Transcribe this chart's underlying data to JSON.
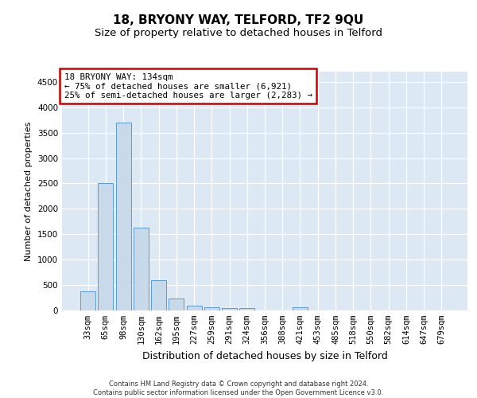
{
  "title": "18, BRYONY WAY, TELFORD, TF2 9QU",
  "subtitle": "Size of property relative to detached houses in Telford",
  "xlabel": "Distribution of detached houses by size in Telford",
  "ylabel": "Number of detached properties",
  "footer_line1": "Contains HM Land Registry data © Crown copyright and database right 2024.",
  "footer_line2": "Contains public sector information licensed under the Open Government Licence v3.0.",
  "categories": [
    "33sqm",
    "65sqm",
    "98sqm",
    "130sqm",
    "162sqm",
    "195sqm",
    "227sqm",
    "259sqm",
    "291sqm",
    "324sqm",
    "356sqm",
    "388sqm",
    "421sqm",
    "453sqm",
    "485sqm",
    "518sqm",
    "550sqm",
    "582sqm",
    "614sqm",
    "647sqm",
    "679sqm"
  ],
  "values": [
    375,
    2500,
    3700,
    1625,
    600,
    240,
    100,
    60,
    50,
    40,
    0,
    0,
    55,
    0,
    0,
    0,
    0,
    0,
    0,
    0,
    0
  ],
  "highlight_index": 3,
  "bar_color": "#c8daea",
  "bar_edge_color": "#5b9bd5",
  "annotation_text_line1": "18 BRYONY WAY: 134sqm",
  "annotation_text_line2": "← 75% of detached houses are smaller (6,921)",
  "annotation_text_line3": "25% of semi-detached houses are larger (2,283) →",
  "annotation_box_facecolor": "#ffffff",
  "annotation_box_edgecolor": "#cc0000",
  "ylim": [
    0,
    4700
  ],
  "yticks": [
    0,
    500,
    1000,
    1500,
    2000,
    2500,
    3000,
    3500,
    4000,
    4500
  ],
  "fig_background": "#ffffff",
  "plot_background": "#dce9f5",
  "title_fontsize": 11,
  "subtitle_fontsize": 9.5,
  "xlabel_fontsize": 9,
  "ylabel_fontsize": 8,
  "tick_fontsize": 7.5,
  "footer_fontsize": 6,
  "annotation_fontsize": 7.8
}
